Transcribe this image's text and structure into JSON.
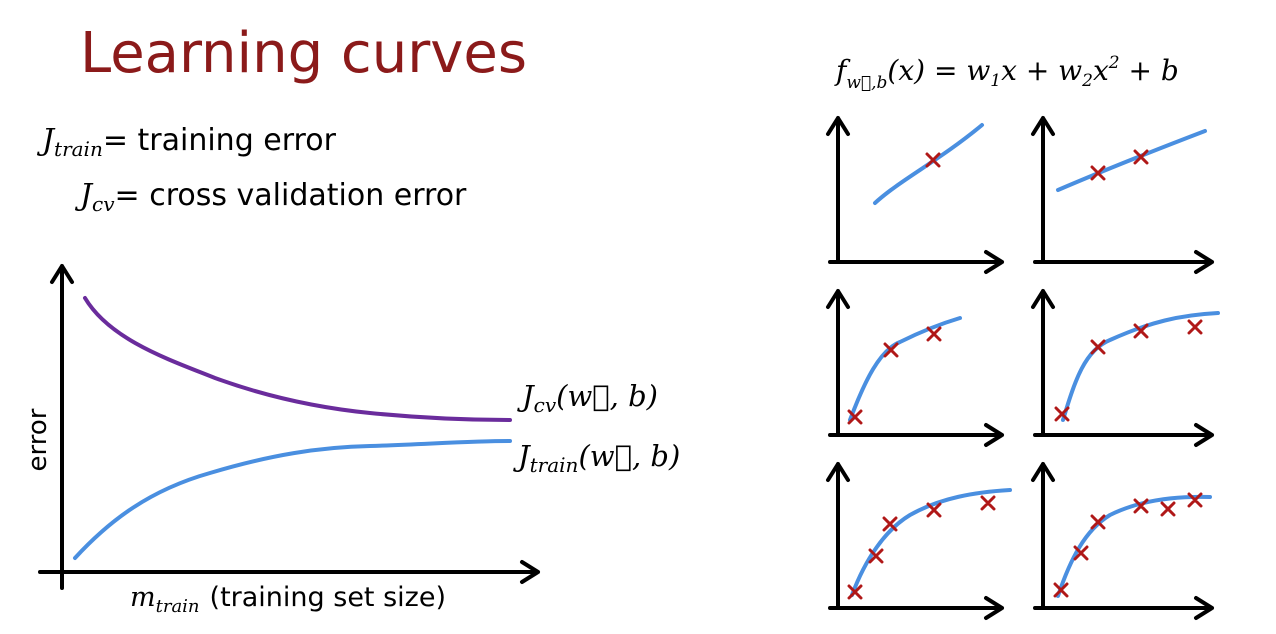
{
  "title": "Learning curves",
  "definitions": [
    {
      "symbol": "J",
      "subscript": "train",
      "text": "= training error"
    },
    {
      "symbol": "J",
      "subscript": "cv",
      "text": "= cross validation error"
    }
  ],
  "chart": {
    "y_label": "error",
    "x_label": {
      "symbol": "m",
      "subscript": "train",
      "text": "(training set size)"
    },
    "curves": [
      {
        "symbol": "J",
        "subscript": "cv",
        "args": "(w⃗, b)"
      },
      {
        "symbol": "J",
        "subscript": "train",
        "args": "(w⃗, b)"
      }
    ]
  },
  "formula": {
    "parts": [
      "f",
      "w⃗,b",
      "(x) = w",
      "1",
      "x + w",
      "2",
      "x",
      "2",
      " + b"
    ]
  }
}
